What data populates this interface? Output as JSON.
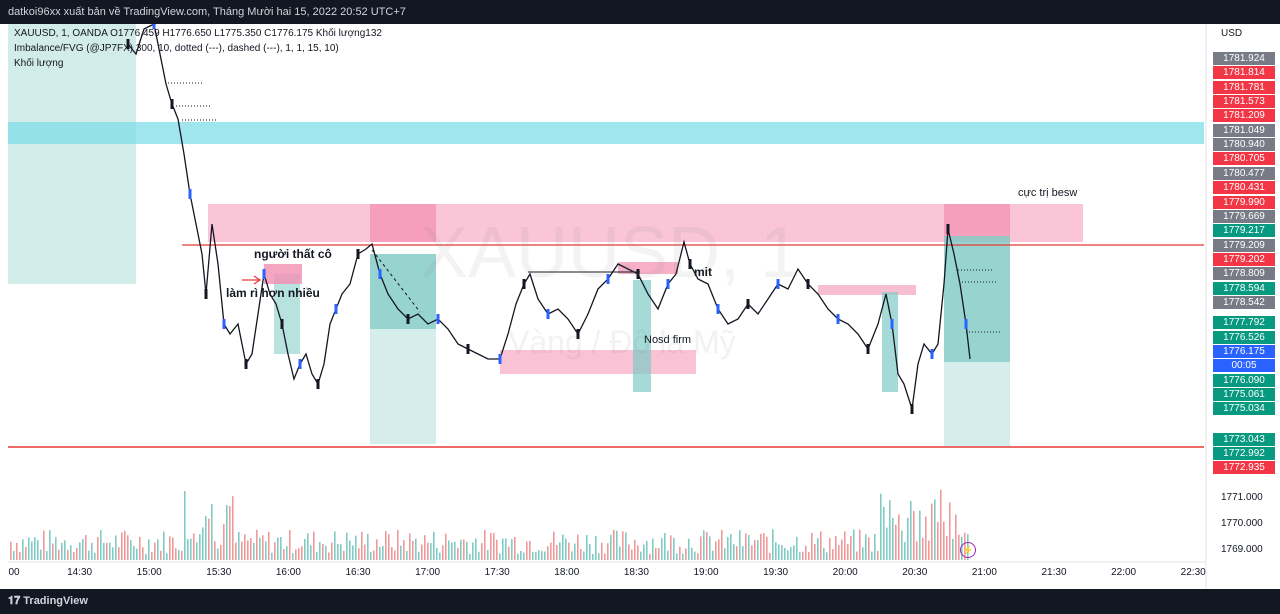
{
  "header": {
    "publish_text": "datkoi96xx xuất bản về TradingView.com, Tháng Mười hai 15, 2022 20:52 UTC+7"
  },
  "legend": {
    "symbol_line": "XAUUSD, 1, OANDA  O1776.459  H1776.650  L1775.350  C1776.175  Khối lượng132",
    "indicator_line": "Imbalance/FVG (@JP7FX) 300, 10, dotted (---), dashed (---), 1, 1, 15, 10)",
    "volume_line": "Khối lượng"
  },
  "watermark": {
    "symbol": "XAUUSD, 1",
    "subtitle": "Vàng / Đô la Mỹ"
  },
  "price_axis": {
    "currency": "USD",
    "labels": [
      {
        "value": "1781.924",
        "color": "#787b86"
      },
      {
        "value": "1781.814",
        "color": "#f23645"
      },
      {
        "value": "1781.781",
        "color": "#f23645"
      },
      {
        "value": "1781.573",
        "color": "#f23645"
      },
      {
        "value": "1781.209",
        "color": "#f23645"
      },
      {
        "value": "1781.049",
        "color": "#787b86"
      },
      {
        "value": "1780.940",
        "color": "#787b86"
      },
      {
        "value": "1780.705",
        "color": "#f23645"
      },
      {
        "value": "1780.477",
        "color": "#787b86"
      },
      {
        "value": "1780.431",
        "color": "#f23645"
      },
      {
        "value": "1779.990",
        "color": "#f23645"
      },
      {
        "value": "1779.669",
        "color": "#787b86"
      },
      {
        "value": "1779.217",
        "color": "#089981"
      },
      {
        "value": "1779.209",
        "color": "#787b86"
      },
      {
        "value": "1779.202",
        "color": "#f23645"
      },
      {
        "value": "1778.809",
        "color": "#787b86"
      },
      {
        "value": "1778.594",
        "color": "#089981"
      },
      {
        "value": "1778.542",
        "color": "#787b86"
      },
      {
        "value": "1777.792",
        "color": "#089981"
      },
      {
        "value": "1776.526",
        "color": "#089981"
      },
      {
        "value": "1776.175",
        "color": "#2962ff"
      },
      {
        "value": "00:05",
        "color": "#2962ff"
      },
      {
        "value": "1776.090",
        "color": "#089981"
      },
      {
        "value": "1775.061",
        "color": "#089981"
      },
      {
        "value": "1775.034",
        "color": "#089981"
      },
      {
        "value": "1773.043",
        "color": "#089981"
      },
      {
        "value": "1772.992",
        "color": "#089981"
      },
      {
        "value": "1772.935",
        "color": "#f23645"
      }
    ],
    "volume_ticks": [
      "1771.000",
      "1770.000",
      "1769.000"
    ]
  },
  "time_axis": {
    "labels": [
      "00",
      "14:30",
      "15:00",
      "15:30",
      "16:00",
      "16:30",
      "17:00",
      "17:30",
      "18:00",
      "18:30",
      "19:00",
      "19:30",
      "20:00",
      "20:30",
      "21:00",
      "21:30",
      "22:00",
      "22:30"
    ]
  },
  "annotations": {
    "extreme": "cực trị besw",
    "loser": "người thất cô",
    "many": "làm rì hơn nhiều",
    "limit": "mit",
    "nosd": "Nosd firm"
  },
  "colors": {
    "up": "#2962ff",
    "down": "#131722",
    "red_line": "#e53935",
    "pink_zone": "#f8bbd0",
    "teal_zone": "#b2dfdb",
    "cyan_zone": "#80deea"
  },
  "footer": {
    "brand": "TradingView"
  }
}
